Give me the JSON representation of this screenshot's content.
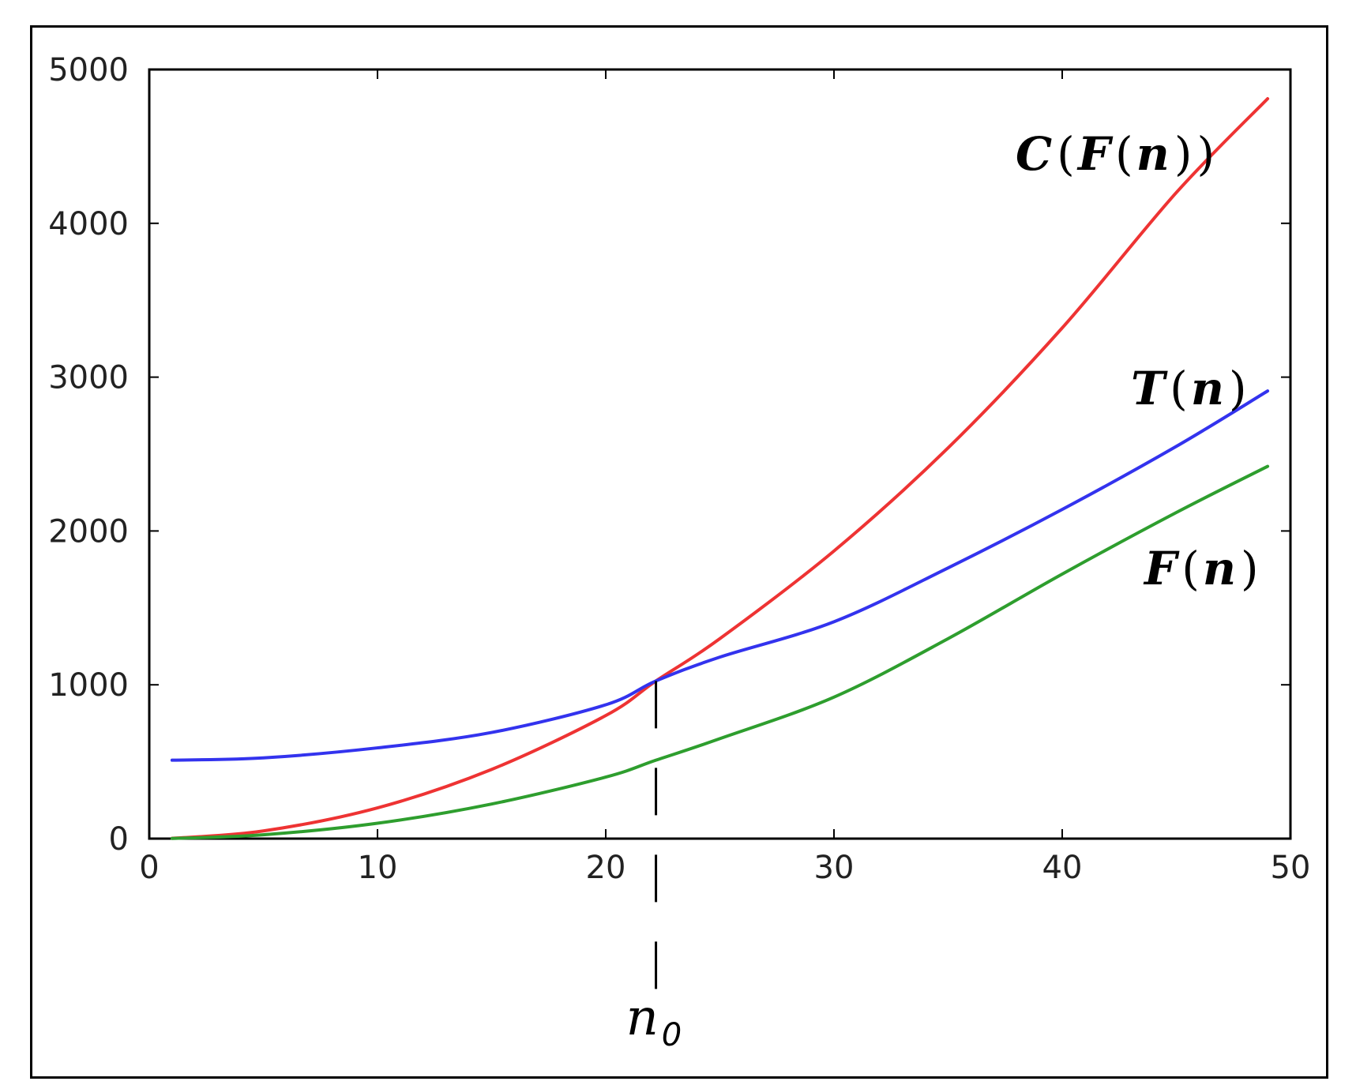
{
  "chart_data": {
    "type": "line",
    "title": "",
    "xlabel": "",
    "ylabel": "",
    "xlim": [
      0,
      50
    ],
    "ylim": [
      0,
      5000
    ],
    "xticks": [
      0,
      10,
      20,
      30,
      40,
      50
    ],
    "yticks": [
      0,
      1000,
      2000,
      3000,
      4000,
      5000
    ],
    "xtick_labels": [
      "0",
      "10",
      "20",
      "30",
      "40",
      "50"
    ],
    "ytick_labels": [
      "0",
      "1000",
      "2000",
      "3000",
      "4000",
      "5000"
    ],
    "grid": false,
    "legend": "none",
    "x": [
      1,
      5,
      10,
      15,
      20,
      22.2,
      25,
      30,
      35,
      40,
      45,
      49
    ],
    "series": [
      {
        "name": "C(F(n))",
        "label_parts": [
          "C",
          "(",
          "F",
          "(",
          "n",
          ")",
          ")"
        ],
        "color": "#ee3333",
        "values": [
          2,
          50,
          200,
          450,
          800,
          1025,
          1300,
          1870,
          2540,
          3320,
          4200,
          4810
        ]
      },
      {
        "name": "T(n)",
        "label_parts": [
          "T",
          "(",
          "n",
          ")"
        ],
        "color": "#3333ee",
        "values": [
          510,
          525,
          590,
          690,
          870,
          1025,
          1180,
          1410,
          1760,
          2140,
          2550,
          2910
        ]
      },
      {
        "name": "F(n)",
        "label_parts": [
          "F",
          "(",
          "n",
          ")"
        ],
        "color": "#2e9e2e",
        "values": [
          1,
          25,
          100,
          225,
          400,
          510,
          650,
          920,
          1300,
          1720,
          2120,
          2420
        ]
      }
    ],
    "annotations": [
      {
        "type": "vertical-dashed-line",
        "x": 22.2,
        "label": "n",
        "subscript": "0"
      }
    ]
  }
}
